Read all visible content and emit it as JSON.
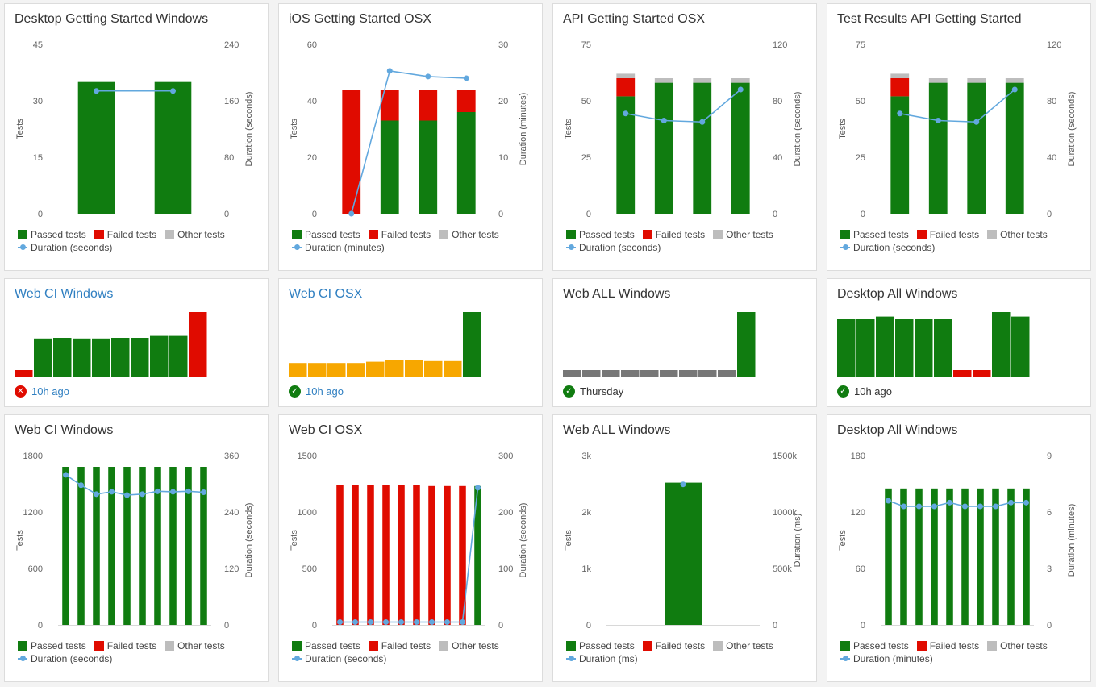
{
  "colors": {
    "passed": "#107c10",
    "failed": "#e00b00",
    "other": "#bdbdbd",
    "duration": "#62a8de",
    "warning": "#f7a700",
    "neutral": "#777777"
  },
  "trend_cards": [
    {
      "title": "Desktop Getting Started Windows",
      "legend": {
        "passed": "Passed tests",
        "failed": "Failed tests",
        "other": "Other tests",
        "duration": "Duration (seconds)"
      },
      "chart_data": {
        "type": "bar",
        "y_left_label": "Tests",
        "y_right_label": "Duration (seconds)",
        "y_left_ticks": [
          "45",
          "30",
          "15",
          "0"
        ],
        "y_left_max": 45,
        "y_right_ticks": [
          "240",
          "160",
          "80",
          "0"
        ],
        "y_right_max": 240,
        "bars": [
          {
            "passed": 35,
            "failed": 0,
            "other": 0
          },
          {
            "passed": 35,
            "failed": 0,
            "other": 0
          }
        ],
        "duration": [
          174,
          174
        ]
      }
    },
    {
      "title": "iOS Getting Started OSX",
      "legend": {
        "passed": "Passed tests",
        "failed": "Failed tests",
        "other": "Other tests",
        "duration": "Duration (minutes)"
      },
      "chart_data": {
        "type": "bar",
        "y_left_label": "Tests",
        "y_right_label": "Duration (minutes)",
        "y_left_ticks": [
          "60",
          "40",
          "20",
          "0"
        ],
        "y_left_max": 60,
        "y_right_ticks": [
          "30",
          "20",
          "10",
          "0"
        ],
        "y_right_max": 30,
        "bars": [
          {
            "passed": 0,
            "failed": 44,
            "other": 0
          },
          {
            "passed": 33,
            "failed": 11,
            "other": 0
          },
          {
            "passed": 33,
            "failed": 11,
            "other": 0
          },
          {
            "passed": 36,
            "failed": 8,
            "other": 0
          }
        ],
        "duration": [
          0,
          25.3,
          24.3,
          24
        ]
      }
    },
    {
      "title": "API Getting Started OSX",
      "legend": {
        "passed": "Passed tests",
        "failed": "Failed tests",
        "other": "Other tests",
        "duration": "Duration (seconds)"
      },
      "chart_data": {
        "type": "bar",
        "y_left_label": "Tests",
        "y_right_label": "Duration (seconds)",
        "y_left_ticks": [
          "75",
          "50",
          "25",
          "0"
        ],
        "y_left_max": 75,
        "y_right_ticks": [
          "120",
          "80",
          "40",
          "0"
        ],
        "y_right_max": 120,
        "bars": [
          {
            "passed": 52,
            "failed": 8,
            "other": 2
          },
          {
            "passed": 58,
            "failed": 0,
            "other": 2
          },
          {
            "passed": 58,
            "failed": 0,
            "other": 2
          },
          {
            "passed": 58,
            "failed": 0,
            "other": 2
          }
        ],
        "duration": [
          71,
          66,
          65,
          88
        ]
      }
    },
    {
      "title": "Test Results API Getting Started",
      "legend": {
        "passed": "Passed tests",
        "failed": "Failed tests",
        "other": "Other tests",
        "duration": "Duration (seconds)"
      },
      "chart_data": {
        "type": "bar",
        "y_left_label": "Tests",
        "y_right_label": "Duration (seconds)",
        "y_left_ticks": [
          "75",
          "50",
          "25",
          "0"
        ],
        "y_left_max": 75,
        "y_right_ticks": [
          "120",
          "80",
          "40",
          "0"
        ],
        "y_right_max": 120,
        "bars": [
          {
            "passed": 52,
            "failed": 8,
            "other": 2
          },
          {
            "passed": 58,
            "failed": 0,
            "other": 2
          },
          {
            "passed": 58,
            "failed": 0,
            "other": 2
          },
          {
            "passed": 58,
            "failed": 0,
            "other": 2
          }
        ],
        "duration": [
          71,
          66,
          65,
          88
        ]
      }
    },
    {
      "title": "Web CI Windows",
      "legend": {
        "passed": "Passed tests",
        "failed": "Failed tests",
        "other": "Other tests",
        "duration": "Duration (seconds)"
      },
      "chart_data": {
        "type": "bar",
        "y_left_label": "Tests",
        "y_right_label": "Duration (seconds)",
        "y_left_ticks": [
          "1800",
          "1200",
          "600",
          "0"
        ],
        "y_left_max": 1800,
        "y_right_ticks": [
          "360",
          "240",
          "120",
          "0"
        ],
        "y_right_max": 360,
        "bars": [
          {
            "passed": 1680,
            "failed": 0,
            "other": 0
          },
          {
            "passed": 1680,
            "failed": 0,
            "other": 0
          },
          {
            "passed": 1680,
            "failed": 0,
            "other": 0
          },
          {
            "passed": 1680,
            "failed": 0,
            "other": 0
          },
          {
            "passed": 1680,
            "failed": 0,
            "other": 0
          },
          {
            "passed": 1680,
            "failed": 0,
            "other": 0
          },
          {
            "passed": 1680,
            "failed": 0,
            "other": 0
          },
          {
            "passed": 1680,
            "failed": 0,
            "other": 0
          },
          {
            "passed": 1680,
            "failed": 0,
            "other": 0
          },
          {
            "passed": 1680,
            "failed": 0,
            "other": 0
          }
        ],
        "duration": [
          319,
          297,
          278,
          283,
          276,
          278,
          284,
          283,
          284,
          282
        ]
      }
    },
    {
      "title": "Web CI OSX",
      "legend": {
        "passed": "Passed tests",
        "failed": "Failed tests",
        "other": "Other tests",
        "duration": "Duration (seconds)"
      },
      "chart_data": {
        "type": "bar",
        "y_left_label": "Tests",
        "y_right_label": "Duration (seconds)",
        "y_left_ticks": [
          "1500",
          "1000",
          "500",
          "0"
        ],
        "y_left_max": 1500,
        "y_right_ticks": [
          "300",
          "200",
          "100",
          "0"
        ],
        "y_right_max": 300,
        "bars": [
          {
            "passed": 0,
            "failed": 1240,
            "other": 0
          },
          {
            "passed": 0,
            "failed": 1240,
            "other": 0
          },
          {
            "passed": 0,
            "failed": 1240,
            "other": 0
          },
          {
            "passed": 0,
            "failed": 1240,
            "other": 0
          },
          {
            "passed": 0,
            "failed": 1240,
            "other": 0
          },
          {
            "passed": 0,
            "failed": 1240,
            "other": 0
          },
          {
            "passed": 0,
            "failed": 1230,
            "other": 0
          },
          {
            "passed": 0,
            "failed": 1230,
            "other": 0
          },
          {
            "passed": 0,
            "failed": 1230,
            "other": 0
          },
          {
            "passed": 1230,
            "failed": 0,
            "other": 0
          }
        ],
        "duration": [
          5,
          5,
          5,
          5,
          5,
          5,
          5,
          5,
          5,
          243
        ]
      }
    },
    {
      "title": "Web ALL Windows",
      "legend": {
        "passed": "Passed tests",
        "failed": "Failed tests",
        "other": "Other tests",
        "duration": "Duration (ms)"
      },
      "chart_data": {
        "type": "bar",
        "y_left_label": "Tests",
        "y_right_label": "Duration (ms)",
        "y_left_ticks": [
          "3k",
          "2k",
          "1k",
          "0"
        ],
        "y_left_max": 3000,
        "y_right_ticks": [
          "1500k",
          "1000k",
          "500k",
          "0"
        ],
        "y_right_max": 1500000,
        "bars": [
          {
            "passed": 2520,
            "failed": 0,
            "other": 0
          }
        ],
        "duration": [
          1245000
        ]
      }
    },
    {
      "title": "Desktop All Windows",
      "legend": {
        "passed": "Passed tests",
        "failed": "Failed tests",
        "other": "Other tests",
        "duration": "Duration (minutes)"
      },
      "chart_data": {
        "type": "bar",
        "y_left_label": "Tests",
        "y_right_label": "Duration (minutes)",
        "y_left_ticks": [
          "180",
          "120",
          "60",
          "0"
        ],
        "y_left_max": 180,
        "y_right_ticks": [
          "9",
          "6",
          "3",
          "0"
        ],
        "y_right_max": 9,
        "bars": [
          {
            "passed": 145,
            "failed": 0,
            "other": 0
          },
          {
            "passed": 145,
            "failed": 0,
            "other": 0
          },
          {
            "passed": 145,
            "failed": 0,
            "other": 0
          },
          {
            "passed": 145,
            "failed": 0,
            "other": 0
          },
          {
            "passed": 145,
            "failed": 0,
            "other": 0
          },
          {
            "passed": 145,
            "failed": 0,
            "other": 0
          },
          {
            "passed": 145,
            "failed": 0,
            "other": 0
          },
          {
            "passed": 145,
            "failed": 0,
            "other": 0
          },
          {
            "passed": 145,
            "failed": 0,
            "other": 0
          },
          {
            "passed": 145,
            "failed": 0,
            "other": 0
          }
        ],
        "duration": [
          6.6,
          6.3,
          6.3,
          6.3,
          6.5,
          6.3,
          6.3,
          6.3,
          6.5,
          6.5
        ]
      }
    }
  ],
  "history_cards": [
    {
      "title": "Web CI Windows",
      "title_link": true,
      "status": "failed",
      "status_text": "10h ago",
      "status_link": true,
      "chart_data": {
        "type": "bar",
        "bars": [
          {
            "v": 0.1,
            "s": "failed"
          },
          {
            "v": 0.59,
            "s": "passed"
          },
          {
            "v": 0.6,
            "s": "passed"
          },
          {
            "v": 0.59,
            "s": "passed"
          },
          {
            "v": 0.59,
            "s": "passed"
          },
          {
            "v": 0.6,
            "s": "passed"
          },
          {
            "v": 0.6,
            "s": "passed"
          },
          {
            "v": 0.63,
            "s": "passed"
          },
          {
            "v": 0.63,
            "s": "passed"
          },
          {
            "v": 1.0,
            "s": "failed"
          }
        ]
      }
    },
    {
      "title": "Web CI OSX",
      "title_link": true,
      "status": "passed",
      "status_text": "10h ago",
      "status_link": true,
      "chart_data": {
        "type": "bar",
        "bars": [
          {
            "v": 0.21,
            "s": "warning"
          },
          {
            "v": 0.21,
            "s": "warning"
          },
          {
            "v": 0.21,
            "s": "warning"
          },
          {
            "v": 0.21,
            "s": "warning"
          },
          {
            "v": 0.23,
            "s": "warning"
          },
          {
            "v": 0.25,
            "s": "warning"
          },
          {
            "v": 0.25,
            "s": "warning"
          },
          {
            "v": 0.24,
            "s": "warning"
          },
          {
            "v": 0.24,
            "s": "warning"
          },
          {
            "v": 1.0,
            "s": "passed"
          }
        ]
      }
    },
    {
      "title": "Web ALL Windows",
      "title_link": false,
      "status": "passed",
      "status_text": "Thursday",
      "status_link": false,
      "chart_data": {
        "type": "bar",
        "bars": [
          {
            "v": 0.1,
            "s": "neutral"
          },
          {
            "v": 0.1,
            "s": "neutral"
          },
          {
            "v": 0.1,
            "s": "neutral"
          },
          {
            "v": 0.1,
            "s": "neutral"
          },
          {
            "v": 0.1,
            "s": "neutral"
          },
          {
            "v": 0.1,
            "s": "neutral"
          },
          {
            "v": 0.1,
            "s": "neutral"
          },
          {
            "v": 0.1,
            "s": "neutral"
          },
          {
            "v": 0.1,
            "s": "neutral"
          },
          {
            "v": 1.0,
            "s": "passed"
          }
        ]
      }
    },
    {
      "title": "Desktop All Windows",
      "title_link": false,
      "status": "passed",
      "status_text": "10h ago",
      "status_link": false,
      "chart_data": {
        "type": "bar",
        "bars": [
          {
            "v": 0.9,
            "s": "passed"
          },
          {
            "v": 0.9,
            "s": "passed"
          },
          {
            "v": 0.93,
            "s": "passed"
          },
          {
            "v": 0.9,
            "s": "passed"
          },
          {
            "v": 0.89,
            "s": "passed"
          },
          {
            "v": 0.9,
            "s": "passed"
          },
          {
            "v": 0.1,
            "s": "failed"
          },
          {
            "v": 0.1,
            "s": "failed"
          },
          {
            "v": 1.0,
            "s": "passed"
          },
          {
            "v": 0.93,
            "s": "passed"
          }
        ]
      }
    }
  ]
}
